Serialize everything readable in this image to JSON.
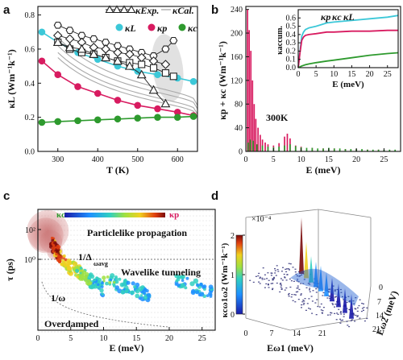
{
  "panels": {
    "a": "a",
    "b": "b",
    "c": "c",
    "d": "d"
  },
  "chart_data": [
    {
      "panel": "a",
      "type": "scatter",
      "xlabel": "T (K)",
      "ylabel": "κL (Wm⁻¹k⁻¹)",
      "xlim": [
        250,
        650
      ],
      "ylim": [
        0.0,
        0.85
      ],
      "xticks": [
        "300",
        "400",
        "500",
        "600"
      ],
      "yticks": [
        "0.0",
        "0.2",
        "0.4",
        "0.6",
        "0.8"
      ],
      "legend": [
        {
          "name": "κExp.",
          "marker": "triangle"
        },
        {
          "name": "κCal.",
          "marker": "line"
        },
        {
          "name": "κL",
          "marker": "circle",
          "color": "#3cc8d8"
        },
        {
          "name": "κp",
          "marker": "circle",
          "color": "#d81b60"
        },
        {
          "name": "κc",
          "marker": "circle",
          "color": "#2e9a2e"
        }
      ],
      "series": [
        {
          "name": "κL",
          "color": "#3cc8d8",
          "x": [
            260,
            300,
            350,
            400,
            450,
            500,
            550,
            600,
            640
          ],
          "y": [
            0.7,
            0.64,
            0.58,
            0.54,
            0.5,
            0.47,
            0.45,
            0.43,
            0.41
          ]
        },
        {
          "name": "κp",
          "color": "#d81b60",
          "x": [
            260,
            300,
            350,
            400,
            450,
            500,
            550,
            600,
            640
          ],
          "y": [
            0.53,
            0.45,
            0.38,
            0.34,
            0.3,
            0.27,
            0.25,
            0.23,
            0.21
          ]
        },
        {
          "name": "κc",
          "color": "#2e9a2e",
          "x": [
            260,
            300,
            350,
            400,
            450,
            500,
            550,
            600,
            640
          ],
          "y": [
            0.17,
            0.175,
            0.18,
            0.185,
            0.19,
            0.195,
            0.2,
            0.2,
            0.205
          ]
        },
        {
          "name": "exp-hexagon",
          "marker": "hexagon",
          "x": [
            300,
            330,
            360,
            390,
            420,
            450,
            480,
            510,
            540,
            570,
            590
          ],
          "y": [
            0.74,
            0.71,
            0.68,
            0.66,
            0.64,
            0.62,
            0.6,
            0.58,
            0.56,
            0.6,
            0.65
          ]
        },
        {
          "name": "exp-diamond",
          "marker": "diamond",
          "x": [
            300,
            330,
            360,
            390,
            420,
            450,
            480,
            510,
            540,
            570
          ],
          "y": [
            0.68,
            0.66,
            0.64,
            0.61,
            0.6,
            0.58,
            0.57,
            0.55,
            0.53,
            0.51
          ]
        },
        {
          "name": "exp-square",
          "marker": "square",
          "x": [
            300,
            330,
            360,
            390,
            420,
            450,
            480,
            510,
            540,
            570,
            590
          ],
          "y": [
            0.64,
            0.6,
            0.58,
            0.57,
            0.55,
            0.53,
            0.52,
            0.51,
            0.49,
            0.46,
            0.44
          ]
        },
        {
          "name": "exp-triangle",
          "marker": "triangle",
          "x": [
            300,
            330,
            360,
            390,
            420,
            450,
            480,
            510,
            540,
            570
          ],
          "y": [
            0.64,
            0.61,
            0.6,
            0.57,
            0.55,
            0.53,
            0.5,
            0.45,
            0.36,
            0.28
          ]
        }
      ]
    },
    {
      "panel": "b",
      "type": "bar",
      "xlabel": "E (meV)",
      "ylabel": "κp + κc (Wm⁻¹k⁻¹)",
      "annotation": "300K",
      "xlim": [
        0,
        28
      ],
      "ylim": [
        0,
        245
      ],
      "xticks": [
        "0",
        "5",
        "10",
        "15",
        "20",
        "25"
      ],
      "yticks": [
        "0",
        "40",
        "80",
        "120",
        "160",
        "200",
        "240"
      ],
      "series": [
        {
          "name": "κp",
          "color": "#d81b60",
          "x": [
            0.3,
            0.6,
            0.9,
            1.2,
            1.5,
            1.8,
            2.2,
            2.6,
            3.0,
            3.5,
            4.0,
            5.0,
            6.0,
            7.0,
            7.5,
            8.0,
            9.0,
            10,
            12,
            14,
            16,
            18,
            20,
            22,
            24,
            26
          ],
          "values": [
            240,
            205,
            170,
            120,
            80,
            55,
            40,
            28,
            20,
            15,
            12,
            10,
            14,
            25,
            30,
            22,
            10,
            8,
            6,
            5,
            5,
            4,
            4,
            3,
            3,
            2
          ]
        },
        {
          "name": "κc",
          "color": "#2e9a2e",
          "x": [
            0.4,
            0.8,
            1.3,
            2.0,
            3.0,
            4.0,
            5.0,
            6.0,
            7.0,
            8.0,
            9.0,
            10,
            11,
            12,
            13,
            14,
            15,
            16,
            17,
            18,
            19,
            20,
            21,
            22,
            23,
            24,
            25,
            26,
            27
          ],
          "values": [
            15,
            20,
            18,
            12,
            10,
            8,
            7,
            8,
            10,
            12,
            9,
            7,
            6,
            6,
            5,
            5,
            6,
            5,
            5,
            4,
            4,
            4,
            4,
            3,
            3,
            3,
            3,
            3,
            3
          ]
        }
      ],
      "inset": {
        "type": "line",
        "xlabel": "E (meV)",
        "ylabel": "κaccum.",
        "xlim": [
          0,
          28
        ],
        "ylim": [
          0.0,
          0.7
        ],
        "xticks": [
          "0",
          "5",
          "10",
          "15",
          "20",
          "25"
        ],
        "yticks": [
          "0.0",
          "0.1",
          "0.2",
          "0.3",
          "0.4",
          "0.5",
          "0.6"
        ],
        "legend": [
          "κp",
          "κc",
          "κL"
        ],
        "series": [
          {
            "name": "κL",
            "color": "#3cc8d8",
            "x": [
              0,
              0.5,
              1,
              1.5,
              2,
              3,
              5,
              8,
              10,
              15,
              20,
              25,
              28
            ],
            "y": [
              0.0,
              0.2,
              0.38,
              0.43,
              0.46,
              0.48,
              0.5,
              0.54,
              0.55,
              0.57,
              0.59,
              0.61,
              0.63
            ]
          },
          {
            "name": "κp",
            "color": "#d81b60",
            "x": [
              0,
              0.5,
              1,
              1.5,
              2,
              3,
              5,
              8,
              10,
              15,
              20,
              25,
              28
            ],
            "y": [
              0.0,
              0.18,
              0.33,
              0.37,
              0.39,
              0.4,
              0.41,
              0.43,
              0.43,
              0.44,
              0.44,
              0.45,
              0.45
            ]
          },
          {
            "name": "κc",
            "color": "#2e9a2e",
            "x": [
              0,
              1,
              2,
              3,
              5,
              8,
              10,
              15,
              20,
              25,
              28
            ],
            "y": [
              0.0,
              0.02,
              0.035,
              0.045,
              0.06,
              0.08,
              0.09,
              0.12,
              0.15,
              0.17,
              0.18
            ]
          }
        ]
      }
    },
    {
      "panel": "c",
      "type": "scatter",
      "xlabel": "E (meV)",
      "ylabel": "τ (ps)",
      "xlim": [
        0,
        27
      ],
      "xticks": [
        "0",
        "5",
        "10",
        "15",
        "20",
        "25"
      ],
      "yticks": [
        "10⁰",
        "10²"
      ],
      "colorbar": {
        "low": "κc",
        "high": "κp"
      },
      "annotations": [
        "Particlelike propagation",
        "Wavelike tunneling",
        "1/Δ",
        "ωavg",
        "1/ω",
        "Overdamped"
      ],
      "clusters": [
        {
          "name": "particlelike",
          "x": [
            1,
            3
          ],
          "value": "high"
        },
        {
          "name": "wavelike-1",
          "x": [
            4,
            10
          ],
          "value": "mixed"
        },
        {
          "name": "wavelike-2",
          "x": [
            10,
            17
          ],
          "value": "low"
        },
        {
          "name": "wavelike-3",
          "x": [
            21,
            26
          ],
          "value": "low"
        }
      ]
    },
    {
      "panel": "d",
      "type": "heatmap",
      "zlabel": "κcω1ω2 (Wm⁻¹k⁻¹)",
      "xlabel": "Eω1 (meV)",
      "ylabel": "Eω2 (meV)",
      "scale_label": "×10⁻⁴",
      "zticks": [
        "0",
        "1",
        "2"
      ],
      "xticks": [
        "0",
        "7",
        "14",
        "21"
      ],
      "yticks": [
        "0",
        "7",
        "14",
        "21"
      ]
    }
  ]
}
